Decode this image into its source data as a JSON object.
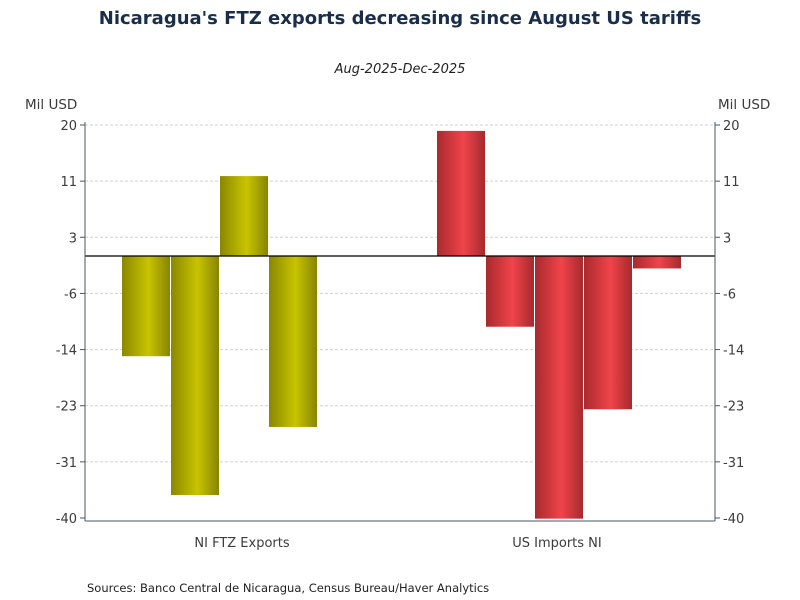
{
  "chart_data": {
    "type": "bar",
    "title": "Nicaragua's FTZ exports decreasing since August US tariffs",
    "subtitle": "Aug-2025-Dec-2025",
    "ylabel_left": "Mil USD",
    "ylabel_right": "Mil USD",
    "ylim": [
      -40,
      20
    ],
    "yticks": [
      20,
      11.43,
      2.86,
      -5.71,
      -14.29,
      -22.86,
      -31.43,
      -40
    ],
    "ytick_labels": [
      "20",
      "11",
      "3",
      "-6",
      "-14",
      "-23",
      "-31",
      "-40"
    ],
    "grid": true,
    "categories": [
      "NI FTZ Exports",
      "US Imports NI"
    ],
    "series": [
      {
        "name": "NI FTZ Exports",
        "color": "#c2bf00",
        "edge_color": "#8a8800",
        "values": [
          -15.3,
          -36.5,
          12.2,
          -26.1
        ]
      },
      {
        "name": "US Imports NI",
        "color": "#f0444a",
        "edge_color": "#a82a2e",
        "values": [
          19.1,
          -10.8,
          -40.1,
          -23.4,
          -1.9
        ]
      }
    ],
    "source": "Sources:  Banco Central de Nicaragua, Census Bureau/Haver Analytics"
  }
}
